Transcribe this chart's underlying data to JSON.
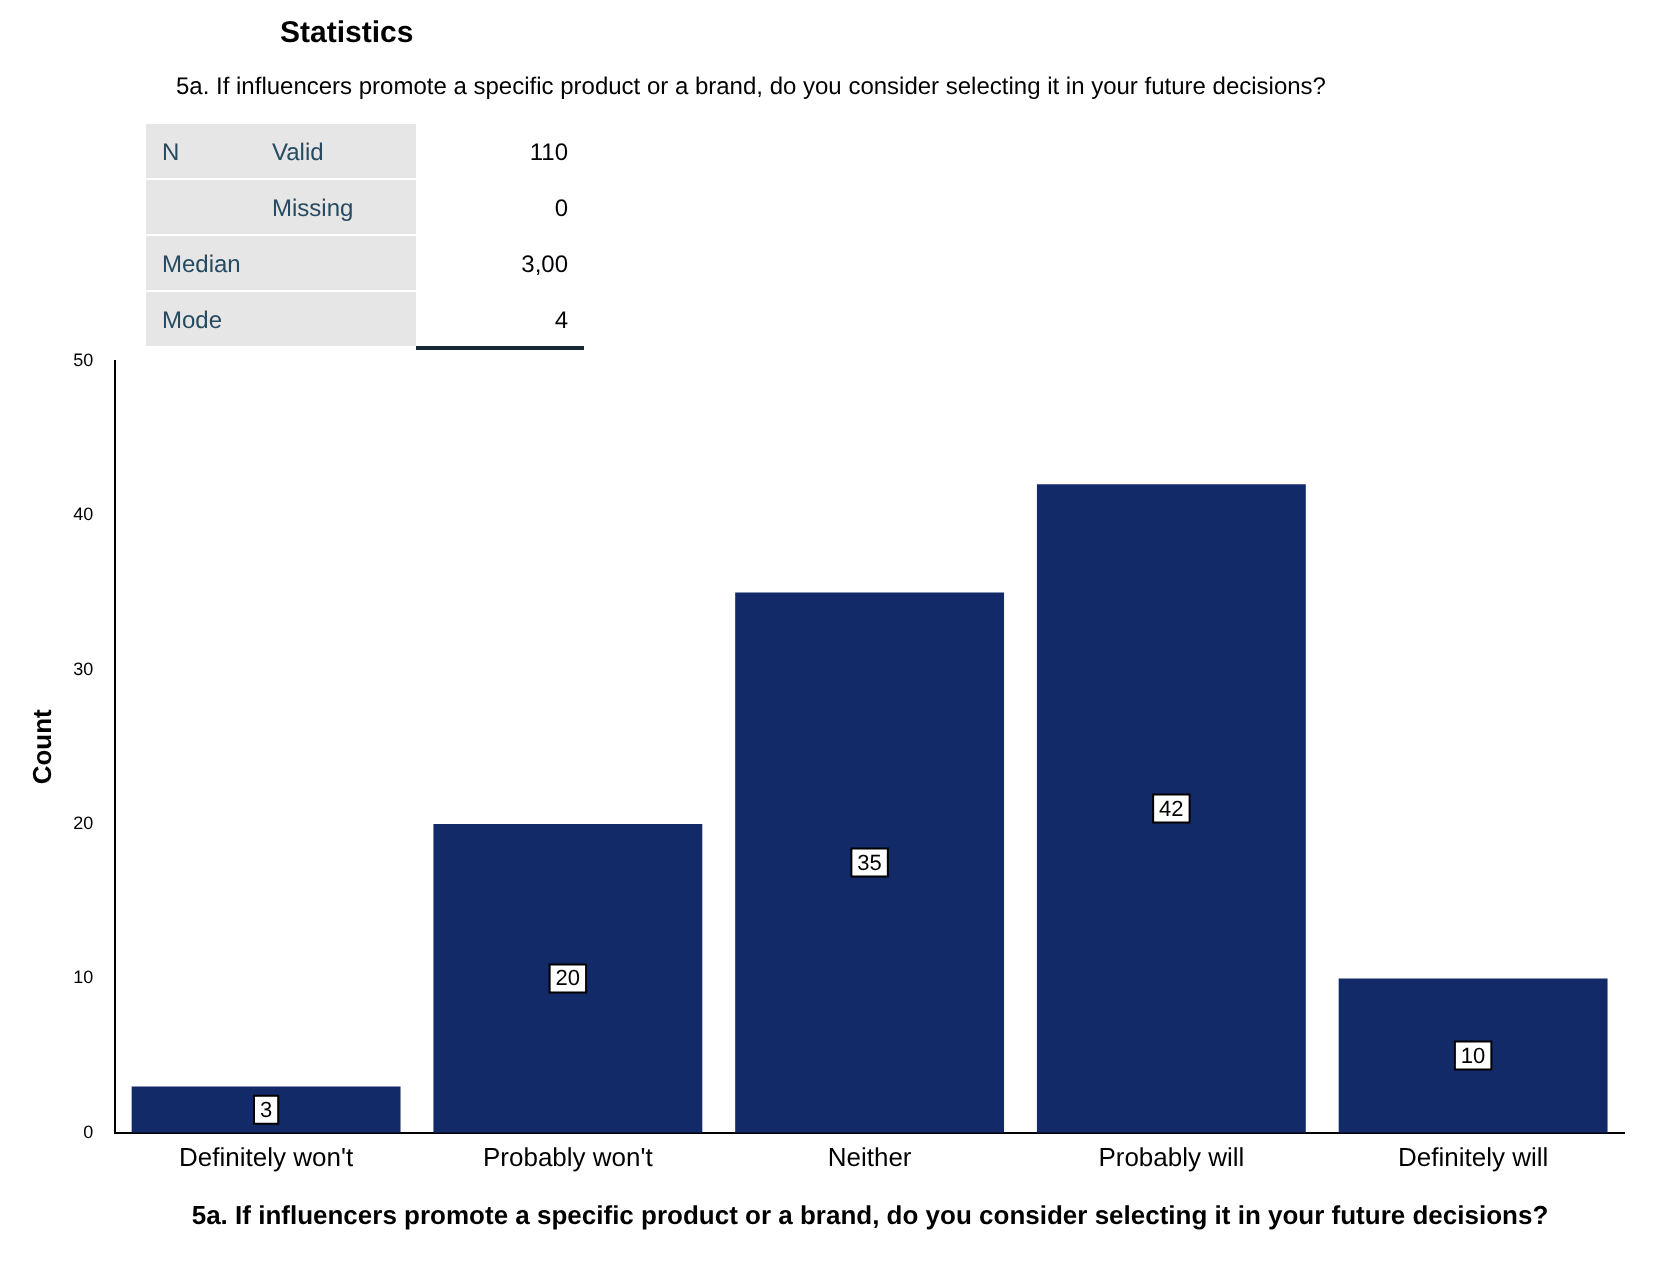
{
  "chart_data": {
    "type": "bar",
    "title": "Statistics",
    "subtitle": "5a. If influencers promote a specific product or a brand, do you consider selecting it in your future decisions?",
    "annotations": [
      "N",
      "Valid",
      "110",
      "Missing",
      "0",
      "Median",
      "3,00",
      "Mode",
      "4"
    ],
    "categories": [
      "Definitely won't",
      "Probably won't",
      "Neither",
      "Probably will",
      "Definitely will"
    ],
    "values": [
      3,
      20,
      35,
      42,
      10
    ],
    "color": "#132a68",
    "ylim": [
      0,
      50
    ],
    "yticks": [
      0,
      10,
      20,
      30,
      40,
      50
    ],
    "grid": false,
    "legend": false,
    "data_labels": true,
    "ylabel": "Count",
    "xlabel": "5a. If influencers promote a specific product or a brand, do you consider selecting it in your future decisions?"
  }
}
